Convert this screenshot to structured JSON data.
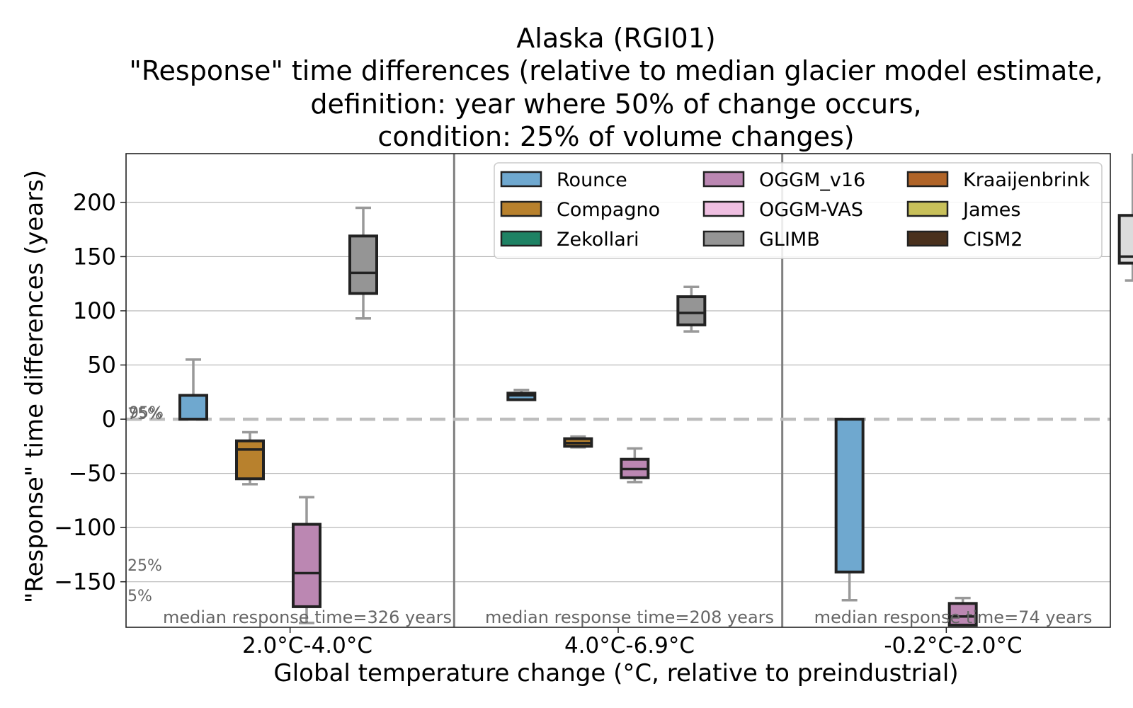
{
  "chart_data": {
    "type": "box",
    "title_lines": [
      "Alaska (RGI01)",
      "\"Response\" time differences (relative to median glacier model estimate,",
      "definition: year where 50% of change occurs,",
      "condition: 25% of volume changes)"
    ],
    "xlabel": "Global temperature change (°C, relative to preindustrial)",
    "ylabel": "\"Response\" time differences (years)",
    "ylim": [
      -192,
      245
    ],
    "yticks": [
      200,
      150,
      100,
      50,
      0,
      -50,
      -100,
      -150
    ],
    "ytick_labels": [
      "200",
      "150",
      "100",
      "50",
      "0",
      "−50",
      "−100",
      "−150"
    ],
    "grid": true,
    "legend_position": "top-right",
    "categories": [
      "2.0°C-4.0°C",
      "4.0°C-6.9°C",
      "-0.2°C-2.0°C"
    ],
    "median_notes": [
      "median response time=326 years",
      "median response time=208 years",
      "median response time=74 years"
    ],
    "percentile_notes": [
      "95%",
      "75%",
      "25%",
      "5%"
    ],
    "series": [
      {
        "name": "Rounce",
        "color": "#6fa8cf",
        "boxes": [
          {
            "group": 0,
            "offset": 0,
            "whislo": 0,
            "q1": 0,
            "med": 0,
            "q3": 22,
            "whishi": 55
          },
          {
            "group": 1,
            "offset": 0,
            "whislo": 18,
            "q1": 18,
            "med": 22,
            "q3": 24,
            "whishi": 27
          },
          {
            "group": 2,
            "offset": 0,
            "whislo": -167,
            "q1": -141,
            "med": 0,
            "q3": 0,
            "whishi": 0
          }
        ]
      },
      {
        "name": "Compagno",
        "color": "#b8812d",
        "boxes": [
          {
            "group": 0,
            "offset": 1,
            "whislo": -60,
            "q1": -55,
            "med": -28,
            "q3": -20,
            "whishi": -12
          },
          {
            "group": 1,
            "offset": 1,
            "whislo": -26,
            "q1": -25,
            "med": -22,
            "q3": -18,
            "whishi": -16
          }
        ]
      },
      {
        "name": "Zekollari",
        "color": "#1e8264",
        "boxes": []
      },
      {
        "name": "OGGM_v16",
        "color": "#bb87b2",
        "boxes": [
          {
            "group": 0,
            "offset": 2,
            "whislo": -188,
            "q1": -173,
            "med": -142,
            "q3": -97,
            "whishi": -72
          },
          {
            "group": 1,
            "offset": 2,
            "whislo": -58,
            "q1": -54,
            "med": -46,
            "q3": -37,
            "whishi": -27
          },
          {
            "group": 2,
            "offset": 2,
            "whislo": -190,
            "q1": -190,
            "med": -182,
            "q3": -170,
            "whishi": -165
          }
        ]
      },
      {
        "name": "OGGM-VAS",
        "color": "#efbfe1",
        "boxes": []
      },
      {
        "name": "GLIMB",
        "color": "#959595",
        "boxes": [
          {
            "group": 0,
            "offset": 3,
            "whislo": 93,
            "q1": 116,
            "med": 135,
            "q3": 169,
            "whishi": 195
          },
          {
            "group": 1,
            "offset": 3,
            "whislo": 81,
            "q1": 87,
            "med": 98,
            "q3": 113,
            "whishi": 122
          }
        ]
      },
      {
        "name": "Kraaijenbrink",
        "color": "#b06428",
        "boxes": []
      },
      {
        "name": "James",
        "color": "#c8c05a",
        "boxes": []
      },
      {
        "name": "CISM2",
        "color": "#4a311d",
        "boxes": []
      },
      {
        "name": "",
        "color": "#dcdcdc",
        "boxes": [
          {
            "group": 2,
            "offset": 5,
            "whislo": 128,
            "q1": 144,
            "med": 150,
            "q3": 188,
            "whishi": 260
          }
        ]
      }
    ]
  }
}
